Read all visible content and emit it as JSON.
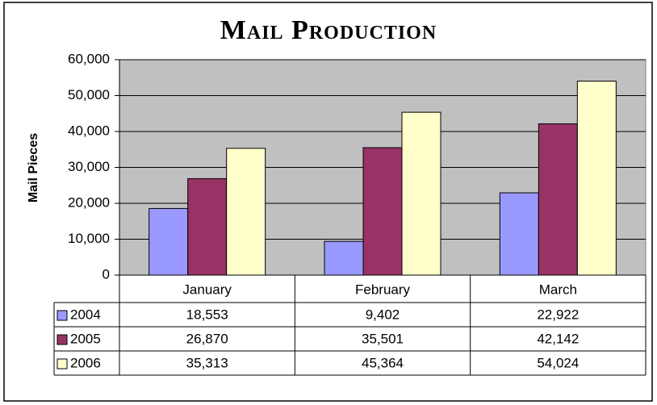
{
  "chart_data": {
    "type": "bar",
    "title": "Mail Production",
    "y_label": "Mail Pieces",
    "categories": [
      "January",
      "February",
      "March"
    ],
    "series": [
      {
        "name": "2004",
        "color": "#9999FF",
        "values": [
          18553,
          9402,
          22922
        ],
        "value_labels": [
          "18,553",
          "9,402",
          "22,922"
        ]
      },
      {
        "name": "2005",
        "color": "#993366",
        "values": [
          26870,
          35501,
          42142
        ],
        "value_labels": [
          "26,870",
          "35,501",
          "42,142"
        ]
      },
      {
        "name": "2006",
        "color": "#FFFFCC",
        "values": [
          35313,
          45364,
          54024
        ],
        "value_labels": [
          "35,313",
          "45,364",
          "54,024"
        ]
      }
    ],
    "ylim": [
      0,
      60000
    ],
    "yticks": [
      0,
      {
        "value": 10000,
        "label": "10,000"
      },
      {
        "value": 20000,
        "label": "20,000"
      },
      {
        "value": 30000,
        "label": "30,000"
      },
      {
        "value": 40000,
        "label": "40,000"
      },
      {
        "value": 50000,
        "label": "50,000"
      },
      {
        "value": 60000,
        "label": "60,000"
      }
    ],
    "grid": true,
    "plot_background": "#C0C0C0"
  }
}
